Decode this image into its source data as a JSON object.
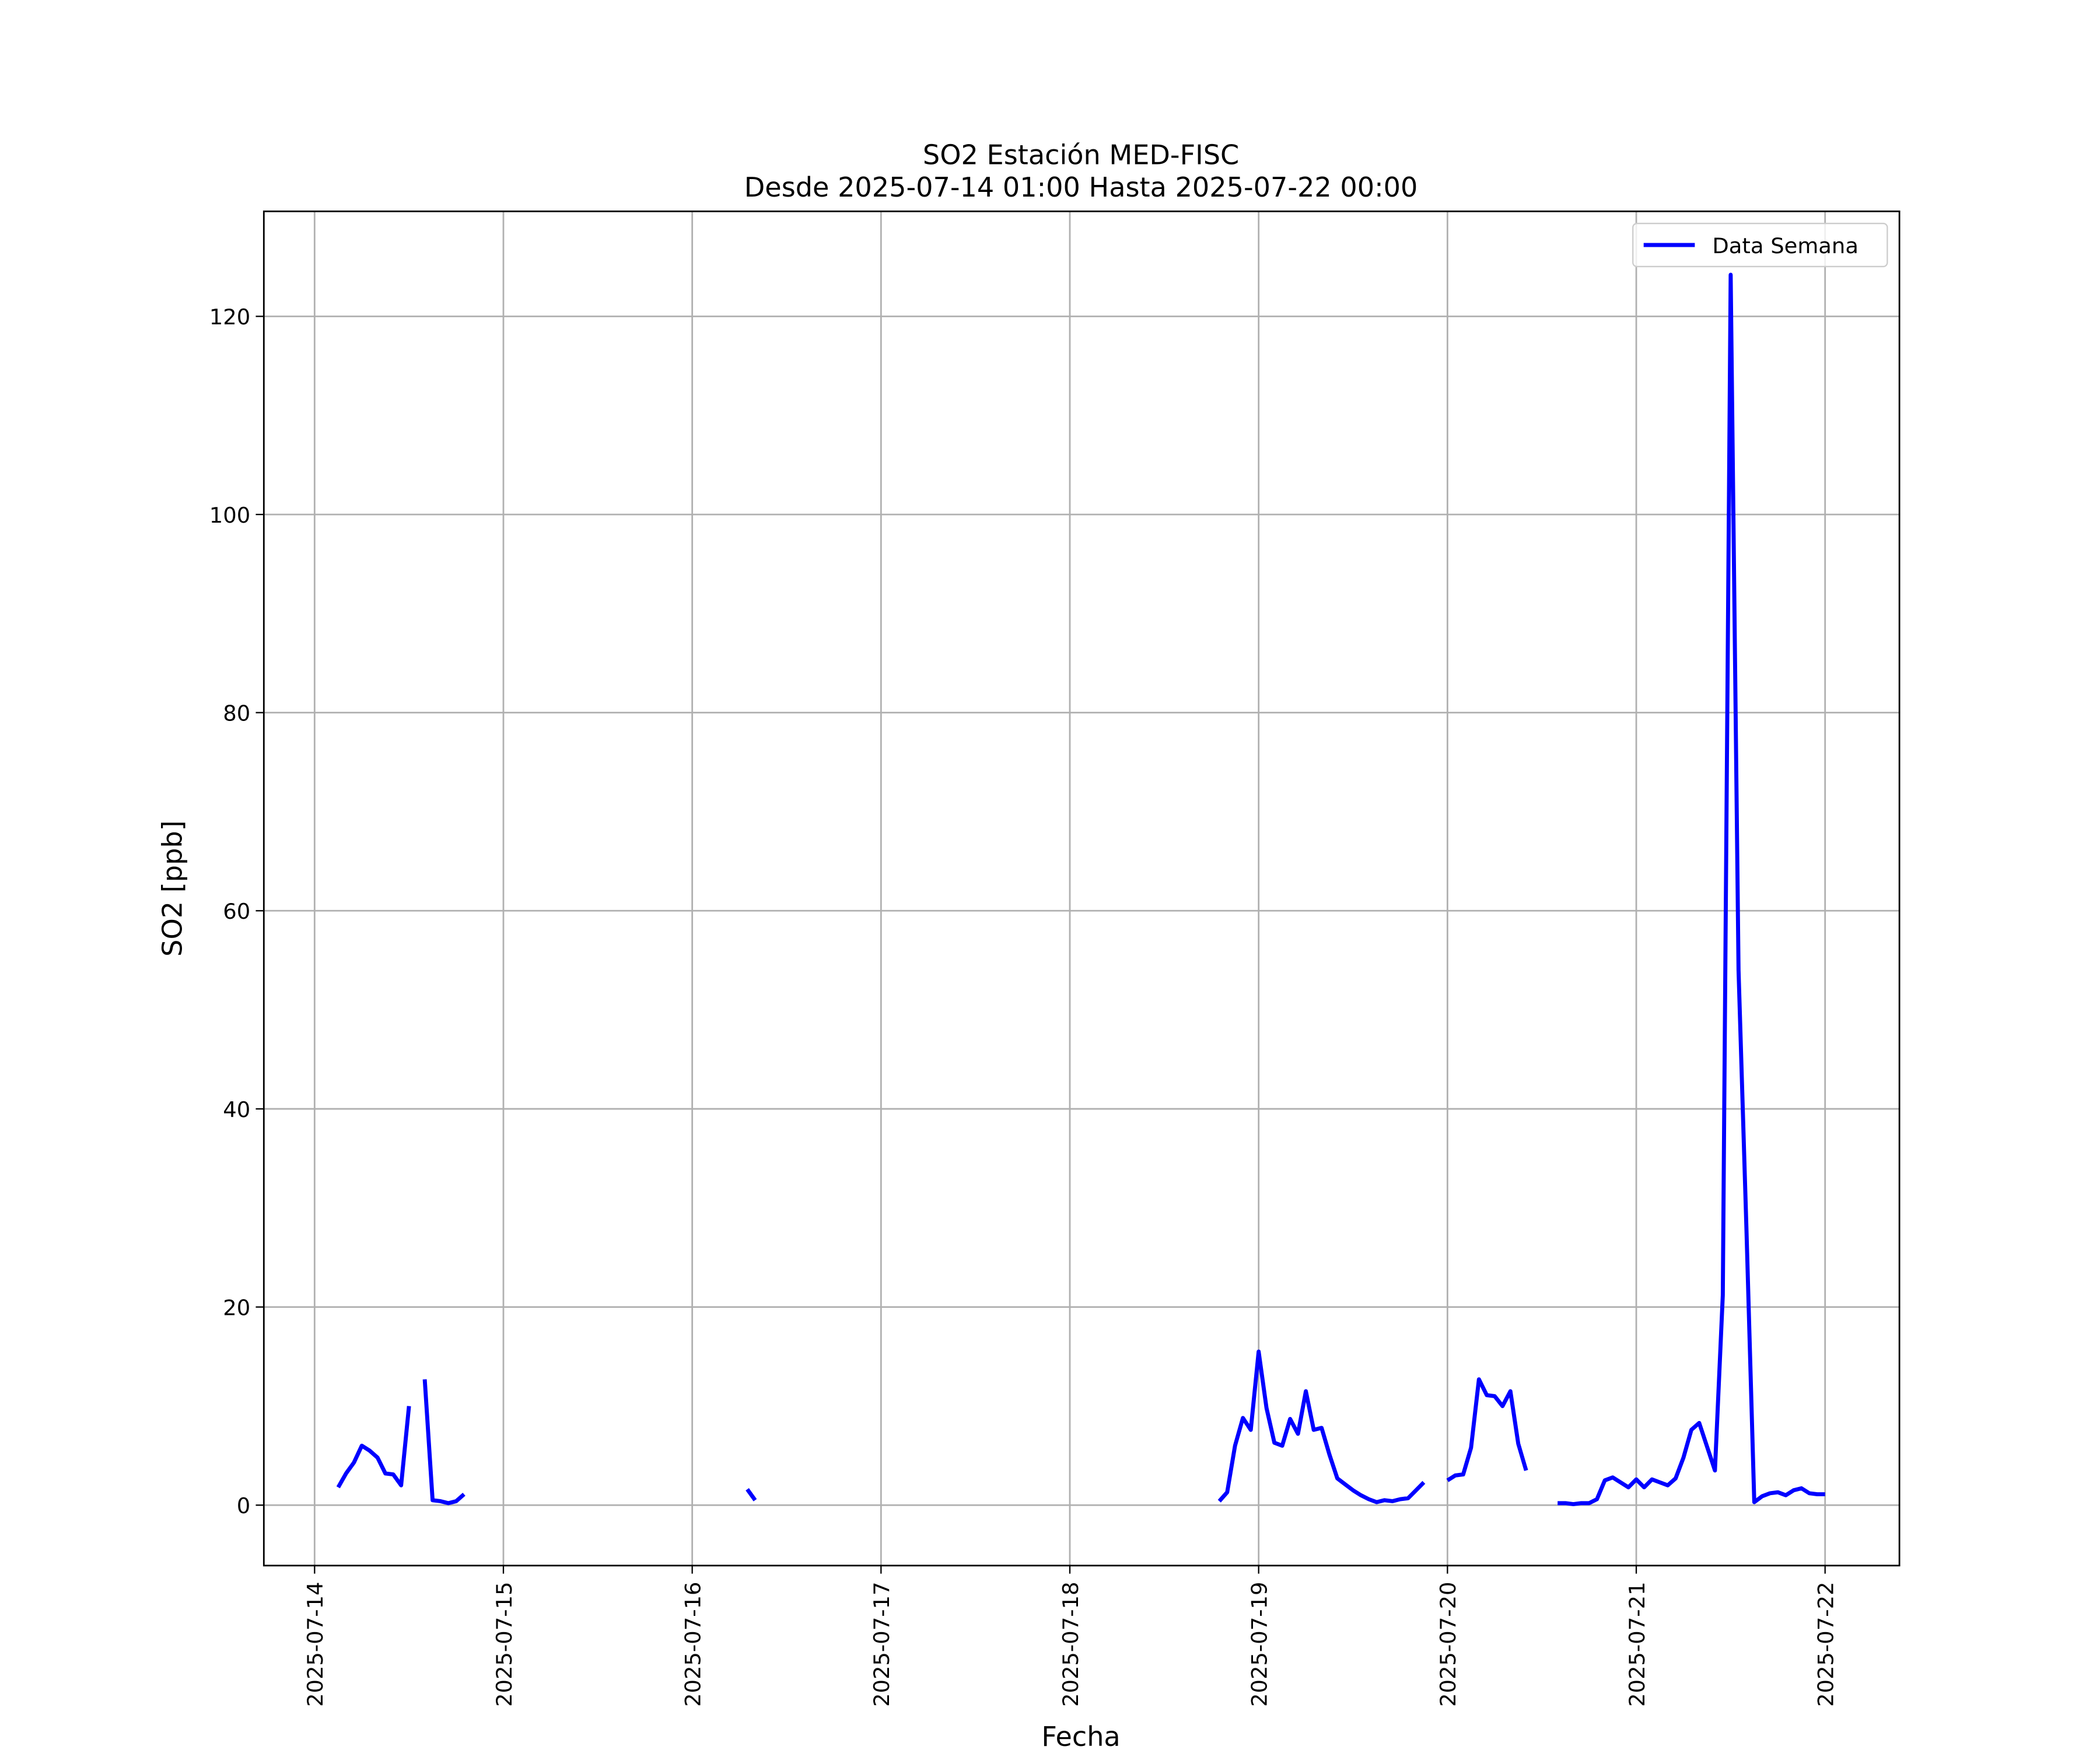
{
  "chart_data": {
    "type": "line",
    "title": "SO2 Estación MED-FISC",
    "subtitle": "Desde 2025-07-14 01:00 Hasta 2025-07-22 00:00",
    "xlabel": "Fecha",
    "ylabel": "SO2 [ppb]",
    "x": [
      "2025-07-14 03:00",
      "2025-07-14 04:00",
      "2025-07-14 05:00",
      "2025-07-14 06:00",
      "2025-07-14 07:00",
      "2025-07-14 08:00",
      "2025-07-14 09:00",
      "2025-07-14 10:00",
      "2025-07-14 11:00",
      "2025-07-14 12:00",
      "2025-07-14 13:00",
      "2025-07-14 14:00",
      "2025-07-14 15:00",
      "2025-07-14 16:00",
      "2025-07-14 17:00",
      "2025-07-14 18:00",
      "2025-07-14 19:00",
      "2025-07-14 20:00",
      "2025-07-16 07:00",
      "2025-07-16 08:00",
      "2025-07-16 09:00",
      "2025-07-18 19:00",
      "2025-07-18 20:00",
      "2025-07-18 21:00",
      "2025-07-18 22:00",
      "2025-07-18 23:00",
      "2025-07-19 00:00",
      "2025-07-19 01:00",
      "2025-07-19 02:00",
      "2025-07-19 03:00",
      "2025-07-19 04:00",
      "2025-07-19 05:00",
      "2025-07-19 06:00",
      "2025-07-19 07:00",
      "2025-07-19 08:00",
      "2025-07-19 09:00",
      "2025-07-19 10:00",
      "2025-07-19 11:00",
      "2025-07-19 12:00",
      "2025-07-19 13:00",
      "2025-07-19 14:00",
      "2025-07-19 15:00",
      "2025-07-19 16:00",
      "2025-07-19 17:00",
      "2025-07-19 18:00",
      "2025-07-19 19:00",
      "2025-07-19 20:00",
      "2025-07-19 21:00",
      "2025-07-19 22:00",
      "2025-07-20 00:00",
      "2025-07-20 01:00",
      "2025-07-20 02:00",
      "2025-07-20 03:00",
      "2025-07-20 04:00",
      "2025-07-20 05:00",
      "2025-07-20 06:00",
      "2025-07-20 07:00",
      "2025-07-20 08:00",
      "2025-07-20 09:00",
      "2025-07-20 10:00",
      "2025-07-20 11:00",
      "2025-07-20 14:00",
      "2025-07-20 15:00",
      "2025-07-20 16:00",
      "2025-07-20 17:00",
      "2025-07-20 18:00",
      "2025-07-20 19:00",
      "2025-07-20 20:00",
      "2025-07-20 21:00",
      "2025-07-20 22:00",
      "2025-07-20 23:00",
      "2025-07-21 00:00",
      "2025-07-21 01:00",
      "2025-07-21 02:00",
      "2025-07-21 03:00",
      "2025-07-21 04:00",
      "2025-07-21 05:00",
      "2025-07-21 06:00",
      "2025-07-21 07:00",
      "2025-07-21 08:00",
      "2025-07-21 09:00",
      "2025-07-21 10:00",
      "2025-07-21 11:00",
      "2025-07-21 12:00",
      "2025-07-21 13:00",
      "2025-07-21 14:00",
      "2025-07-21 15:00",
      "2025-07-21 16:00",
      "2025-07-21 17:00",
      "2025-07-21 18:00",
      "2025-07-21 19:00",
      "2025-07-21 20:00",
      "2025-07-21 21:00",
      "2025-07-21 22:00",
      "2025-07-21 23:00",
      "2025-07-22 00:00"
    ],
    "series": [
      {
        "name": "Data Semana",
        "color": "#0000ff",
        "values": [
          1.8,
          3.2,
          4.3,
          6.0,
          5.5,
          4.8,
          3.2,
          3.1,
          2.0,
          10.0,
          null,
          12.7,
          0.5,
          0.4,
          0.2,
          0.4,
          1.1,
          null,
          1.6,
          0.5,
          null,
          0.4,
          1.3,
          6.0,
          8.8,
          7.6,
          15.5,
          9.8,
          6.3,
          6.0,
          8.7,
          7.2,
          11.5,
          7.6,
          7.8,
          5.1,
          2.7,
          2.1,
          1.5,
          1.0,
          0.6,
          0.3,
          0.5,
          0.4,
          0.6,
          0.7,
          1.5,
          2.3,
          null,
          2.5,
          3.0,
          3.1,
          5.8,
          12.7,
          11.1,
          11.0,
          10.0,
          11.5,
          6.2,
          3.5,
          null,
          0.2,
          0.2,
          0.1,
          0.2,
          0.2,
          0.6,
          2.5,
          2.8,
          2.3,
          1.8,
          2.6,
          1.8,
          2.6,
          2.3,
          2.0,
          2.7,
          4.8,
          7.6,
          8.3,
          5.9,
          3.5,
          21.2,
          124.2,
          54.0,
          28.0,
          0.3,
          0.9,
          1.2,
          1.3,
          1.0,
          1.5,
          1.7,
          1.2,
          1.1,
          1.1
        ]
      }
    ],
    "xlim": [
      "2025-07-13 17:33",
      "2025-07-22 09:27"
    ],
    "xticks": [
      "2025-07-14",
      "2025-07-15",
      "2025-07-16",
      "2025-07-17",
      "2025-07-18",
      "2025-07-19",
      "2025-07-20",
      "2025-07-21",
      "2025-07-22"
    ],
    "ylim": [
      -6.1,
      130.6
    ],
    "yticks": [
      0,
      20,
      40,
      60,
      80,
      100,
      120
    ],
    "grid": true,
    "legend": "upper right"
  }
}
